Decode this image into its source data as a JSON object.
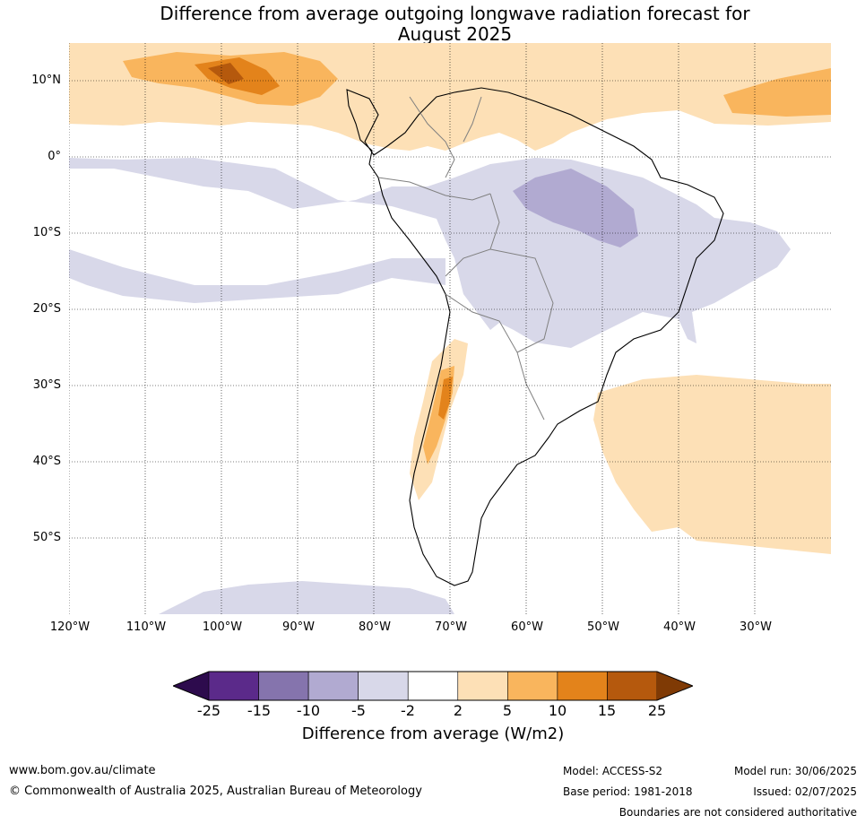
{
  "title": {
    "line1": "Difference from average outgoing longwave radiation forecast for",
    "line2": "August 2025"
  },
  "map": {
    "lat_labels": [
      "10°N",
      "0°",
      "10°S",
      "20°S",
      "30°S",
      "40°S",
      "50°S"
    ],
    "lon_labels": [
      "120°W",
      "110°W",
      "100°W",
      "90°W",
      "80°W",
      "70°W",
      "60°W",
      "50°W",
      "40°W",
      "30°W"
    ],
    "gridlines": true,
    "extent": {
      "lon": [
        -120,
        -20
      ],
      "lat": [
        -60,
        15
      ]
    }
  },
  "colorbar": {
    "ticks": [
      "-25",
      "-15",
      "-10",
      "-5",
      "-2",
      "2",
      "5",
      "10",
      "15",
      "25"
    ],
    "colors": [
      "#2d0b4d",
      "#5b2a8a",
      "#8574ad",
      "#b1aad1",
      "#d8d8e9",
      "#ffffff",
      "#fde0b6",
      "#f9b55d",
      "#e3831b",
      "#b5590d",
      "#7f3a05"
    ],
    "label": "Difference from average (W/m2)"
  },
  "footer": {
    "website": "www.bom.gov.au/climate",
    "copyright": "© Commonwealth of Australia 2025, Australian Bureau of Meteorology",
    "model": "Model: ACCESS-S2",
    "base_period": "Base period: 1981-2018",
    "model_run": "Model run: 30/06/2025",
    "issued": "Issued: 02/07/2025",
    "disclaimer": "Boundaries are not considered authoritative"
  }
}
